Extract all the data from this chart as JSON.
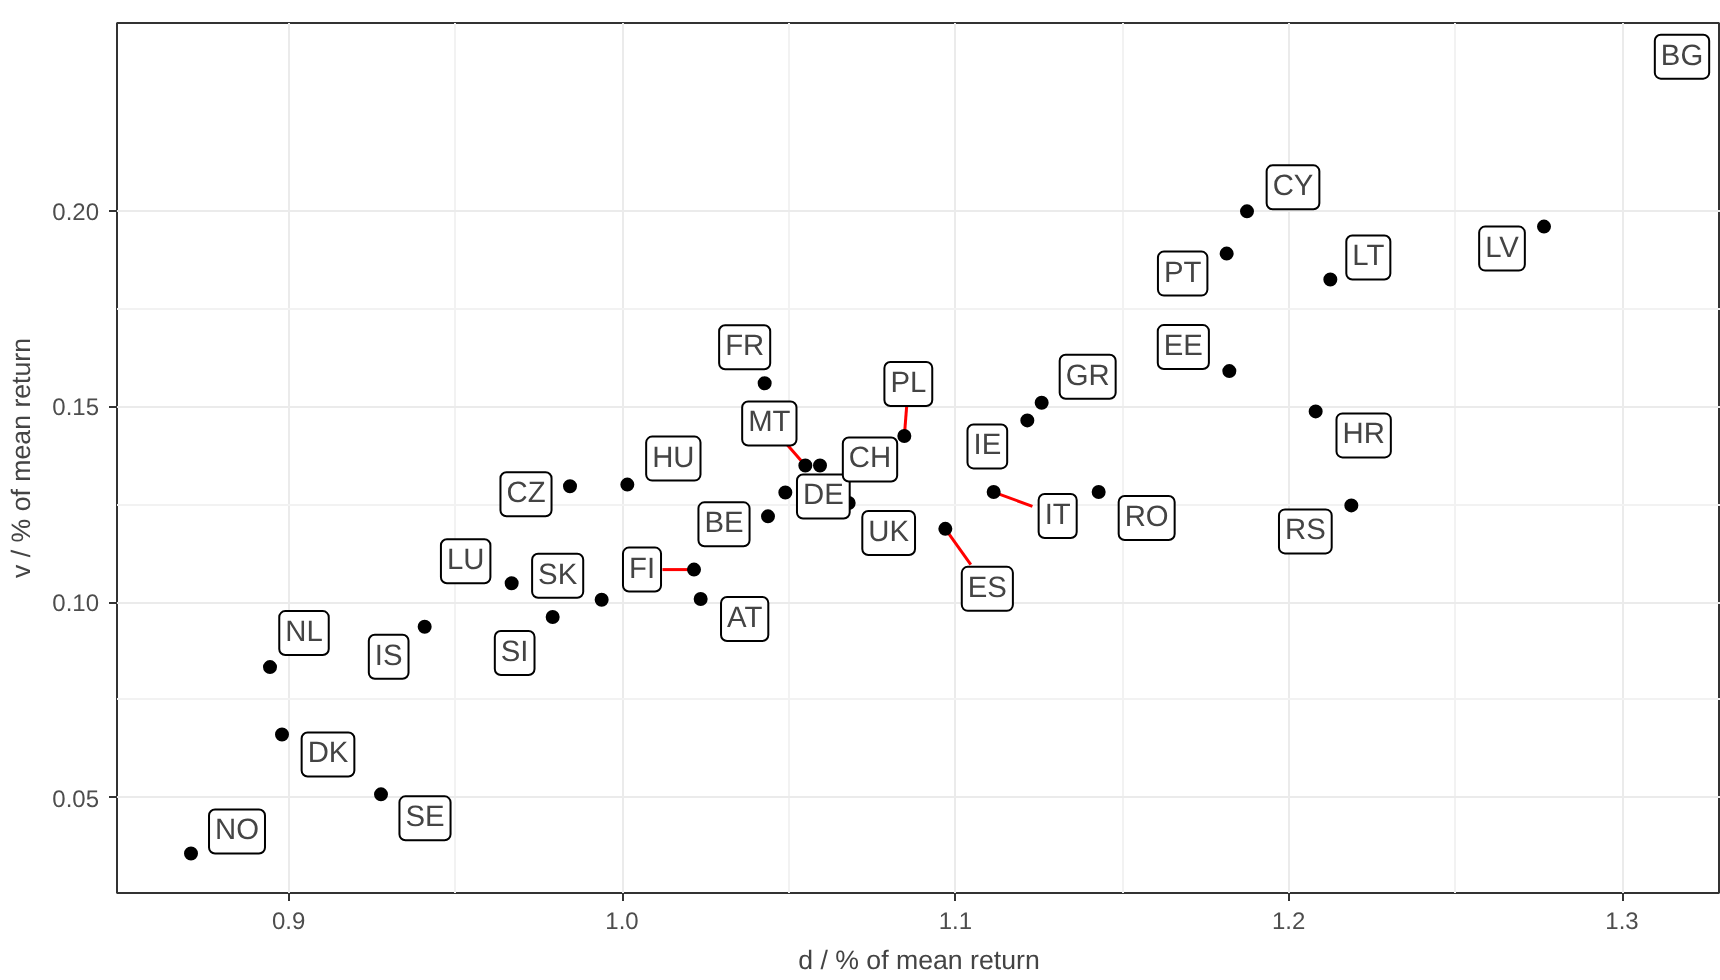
{
  "chart_data": {
    "type": "scatter",
    "xlabel": "d / % of mean return",
    "ylabel": "v / % of mean return",
    "x": [
      0.8707,
      0.898,
      0.9277,
      0.8944,
      0.9408,
      0.9792,
      0.9669,
      0.9939,
      0.9844,
      1.0016,
      1.0216,
      1.0236,
      1.0438,
      1.049,
      1.068,
      1.097,
      1.055,
      1.0594,
      1.0428,
      1.0847,
      1.1216,
      1.1259,
      1.1115,
      1.143,
      1.2188,
      1.2081,
      1.1822,
      1.1814,
      1.1875,
      1.2125,
      1.2766
    ],
    "values": [
      0.0358,
      0.0662,
      0.0509,
      0.0834,
      0.0937,
      0.0962,
      0.1048,
      0.1006,
      0.1296,
      0.13,
      0.1083,
      0.1008,
      0.1219,
      0.128,
      0.1253,
      0.1187,
      0.1349,
      0.1349,
      0.1559,
      0.1424,
      0.1464,
      0.1509,
      0.1281,
      0.1281,
      0.1247,
      0.1487,
      0.159,
      0.189,
      0.1998,
      0.1824,
      0.1959
    ],
    "value_labels": [
      "NO",
      "DK",
      "SE",
      "NL",
      "IS",
      "SI",
      "LU",
      "SK",
      "CZ",
      "HU",
      "FI",
      "AT",
      "BE",
      "DE",
      "UK",
      "ES",
      "MT",
      "CH",
      "FR",
      "PL",
      "IE",
      "GR",
      "IT",
      "RO",
      "RS",
      "HR",
      "EE",
      "PT",
      "CY",
      "LT",
      "LV"
    ],
    "color": "#000000",
    "marker": "circle",
    "annotations": [
      {
        "text": "BG",
        "x": 1.318,
        "y": 0.2393
      }
    ],
    "xlim": [
      0.8485,
      1.3297
    ],
    "ylim": [
      0.0257,
      0.2479
    ],
    "xticks": [
      0.9,
      {
        "value": 1,
        "label": "1.0"
      },
      1.1,
      1.2,
      1.3
    ],
    "yticks": [
      0.05,
      {
        "value": 0.1,
        "label": "0.10"
      },
      0.15,
      {
        "value": 0.2,
        "label": "0.20"
      }
    ],
    "grid": true
  }
}
